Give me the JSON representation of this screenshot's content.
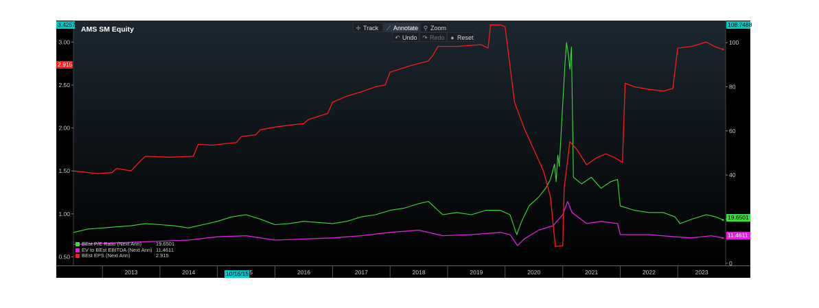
{
  "chart_title": "AMS SM Equity",
  "toolbar": {
    "track": "Track",
    "annotate": "Annotate",
    "zoom": "Zoom",
    "undo": "Undo",
    "redo": "Redo",
    "reset": "Reset"
  },
  "left_top_value": "3.4257",
  "right_top_value": "108.7488",
  "x_date_label": "10/16/15",
  "colors": {
    "background": "#000000",
    "eps": "#ff1a1a",
    "pe": "#3ddc3d",
    "ev": "#e020e0",
    "axis_text": "#cccccc",
    "top_left_badge": "#00c8c8",
    "top_right_badge": "#00c8c8"
  },
  "chart_data": {
    "type": "line",
    "title": "AMS SM Equity",
    "x_range": [
      "2012-07-01",
      "2023-11-01"
    ],
    "x_tick_labels": [
      "2013",
      "2014",
      "2015",
      "2016",
      "2017",
      "2018",
      "2019",
      "2020",
      "2021",
      "2022",
      "2023"
    ],
    "y_left": {
      "range": [
        0.4,
        3.25
      ],
      "ticks": [
        "0.50",
        "1.00",
        "1.50",
        "2.00",
        "2.50",
        "3.00"
      ]
    },
    "y_right": {
      "range": [
        -1,
        110
      ],
      "ticks": [
        "0",
        "20",
        "40",
        "60",
        "80",
        "100"
      ]
    },
    "legend_position": "bottom-left",
    "grid": false,
    "series": [
      {
        "name": "BEst P/E Ratio (Next Ann)",
        "axis": "right",
        "last_value": "19.6501",
        "color": "#3ddc3d",
        "points": [
          [
            "2012-07-01",
            14
          ],
          [
            "2012-10-01",
            15.5
          ],
          [
            "2013-01-01",
            16
          ],
          [
            "2013-04-01",
            16.5
          ],
          [
            "2013-07-01",
            17
          ],
          [
            "2013-10-01",
            18
          ],
          [
            "2014-01-01",
            17.5
          ],
          [
            "2014-04-01",
            17
          ],
          [
            "2014-07-01",
            16
          ],
          [
            "2014-10-01",
            17.5
          ],
          [
            "2015-01-01",
            19
          ],
          [
            "2015-04-01",
            21
          ],
          [
            "2015-07-01",
            22
          ],
          [
            "2015-10-01",
            20
          ],
          [
            "2016-01-01",
            17.5
          ],
          [
            "2016-04-01",
            18
          ],
          [
            "2016-07-01",
            19
          ],
          [
            "2016-10-01",
            18.5
          ],
          [
            "2017-01-01",
            18
          ],
          [
            "2017-04-01",
            19
          ],
          [
            "2017-07-01",
            21
          ],
          [
            "2017-10-01",
            22
          ],
          [
            "2018-01-01",
            24
          ],
          [
            "2018-04-01",
            25
          ],
          [
            "2018-07-01",
            27
          ],
          [
            "2018-09-01",
            28
          ],
          [
            "2018-12-01",
            22
          ],
          [
            "2019-03-01",
            23
          ],
          [
            "2019-06-01",
            22
          ],
          [
            "2019-09-01",
            24
          ],
          [
            "2019-12-01",
            24
          ],
          [
            "2020-02-01",
            22
          ],
          [
            "2020-03-15",
            13
          ],
          [
            "2020-04-15",
            19
          ],
          [
            "2020-06-01",
            26
          ],
          [
            "2020-08-01",
            30
          ],
          [
            "2020-09-15",
            34
          ],
          [
            "2020-10-15",
            38
          ],
          [
            "2020-11-10",
            45
          ],
          [
            "2020-11-20",
            37
          ],
          [
            "2020-12-01",
            49
          ],
          [
            "2020-12-10",
            44
          ],
          [
            "2021-01-01",
            72
          ],
          [
            "2021-01-15",
            90
          ],
          [
            "2021-01-25",
            100
          ],
          [
            "2021-02-05",
            95
          ],
          [
            "2021-02-15",
            88
          ],
          [
            "2021-02-25",
            98
          ],
          [
            "2021-03-10",
            39
          ],
          [
            "2021-05-01",
            36
          ],
          [
            "2021-07-01",
            39
          ],
          [
            "2021-09-01",
            34
          ],
          [
            "2021-11-01",
            37
          ],
          [
            "2021-12-15",
            38
          ],
          [
            "2022-01-01",
            26
          ],
          [
            "2022-04-01",
            24
          ],
          [
            "2022-07-01",
            23
          ],
          [
            "2022-10-01",
            23
          ],
          [
            "2022-12-15",
            21
          ],
          [
            "2023-01-15",
            18
          ],
          [
            "2023-04-01",
            20
          ],
          [
            "2023-07-01",
            22
          ],
          [
            "2023-09-01",
            21
          ],
          [
            "2023-10-15",
            19.6501
          ]
        ]
      },
      {
        "name": "EV to BEst EBITDA (Next Ann)",
        "axis": "right",
        "last_value": "11.4611",
        "color": "#e020e0",
        "points": [
          [
            "2012-07-01",
            8.5
          ],
          [
            "2013-01-01",
            9
          ],
          [
            "2013-07-01",
            9.5
          ],
          [
            "2014-01-01",
            10
          ],
          [
            "2014-07-01",
            10.5
          ],
          [
            "2015-01-01",
            12
          ],
          [
            "2015-07-01",
            12.5
          ],
          [
            "2015-10-01",
            11.5
          ],
          [
            "2016-01-01",
            10.5
          ],
          [
            "2016-07-01",
            11
          ],
          [
            "2017-01-01",
            11.5
          ],
          [
            "2017-07-01",
            12.5
          ],
          [
            "2018-01-01",
            14
          ],
          [
            "2018-07-01",
            15
          ],
          [
            "2018-12-01",
            12.5
          ],
          [
            "2019-06-01",
            13
          ],
          [
            "2019-12-01",
            14
          ],
          [
            "2020-02-01",
            13
          ],
          [
            "2020-03-20",
            8
          ],
          [
            "2020-05-01",
            11
          ],
          [
            "2020-08-01",
            15
          ],
          [
            "2020-11-01",
            17
          ],
          [
            "2021-01-01",
            22
          ],
          [
            "2021-02-01",
            28
          ],
          [
            "2021-03-01",
            23
          ],
          [
            "2021-06-01",
            18
          ],
          [
            "2021-09-01",
            19
          ],
          [
            "2021-12-15",
            18
          ],
          [
            "2022-01-01",
            13
          ],
          [
            "2022-07-01",
            13
          ],
          [
            "2022-12-15",
            12
          ],
          [
            "2023-04-01",
            11.5
          ],
          [
            "2023-08-01",
            12.5
          ],
          [
            "2023-10-15",
            11.4611
          ]
        ]
      },
      {
        "name": "BEst EPS (Next Ann)",
        "axis": "left",
        "last_value": "2.915",
        "color": "#ff1a1a",
        "points": [
          [
            "2012-07-01",
            1.5
          ],
          [
            "2012-12-01",
            1.47
          ],
          [
            "2013-03-01",
            1.48
          ],
          [
            "2013-04-01",
            1.53
          ],
          [
            "2013-07-01",
            1.5
          ],
          [
            "2013-09-01",
            1.62
          ],
          [
            "2013-10-01",
            1.67
          ],
          [
            "2014-03-01",
            1.66
          ],
          [
            "2014-08-01",
            1.67
          ],
          [
            "2014-09-01",
            1.81
          ],
          [
            "2014-12-01",
            1.8
          ],
          [
            "2015-03-01",
            1.82
          ],
          [
            "2015-05-01",
            1.83
          ],
          [
            "2015-06-01",
            1.9
          ],
          [
            "2015-09-01",
            1.92
          ],
          [
            "2015-10-01",
            1.98
          ],
          [
            "2016-01-01",
            2.01
          ],
          [
            "2016-05-01",
            2.04
          ],
          [
            "2016-07-01",
            2.05
          ],
          [
            "2016-08-01",
            2.1
          ],
          [
            "2016-12-01",
            2.17
          ],
          [
            "2017-01-01",
            2.3
          ],
          [
            "2017-04-01",
            2.37
          ],
          [
            "2017-07-01",
            2.42
          ],
          [
            "2017-10-01",
            2.48
          ],
          [
            "2017-12-01",
            2.5
          ],
          [
            "2018-01-01",
            2.65
          ],
          [
            "2018-05-01",
            2.72
          ],
          [
            "2018-09-01",
            2.78
          ],
          [
            "2018-10-01",
            2.85
          ],
          [
            "2018-11-01",
            2.95
          ],
          [
            "2019-03-01",
            2.95
          ],
          [
            "2019-08-01",
            2.97
          ],
          [
            "2019-09-15",
            2.93
          ],
          [
            "2019-10-01",
            3.2
          ],
          [
            "2019-12-01",
            3.2
          ],
          [
            "2020-01-01",
            3.18
          ],
          [
            "2020-03-01",
            2.3
          ],
          [
            "2020-05-01",
            2.0
          ],
          [
            "2020-07-01",
            1.75
          ],
          [
            "2020-09-01",
            1.5
          ],
          [
            "2020-10-15",
            1.2
          ],
          [
            "2020-11-15",
            0.62
          ],
          [
            "2021-01-01",
            0.63
          ],
          [
            "2021-01-10",
            1.3
          ],
          [
            "2021-02-15",
            1.84
          ],
          [
            "2021-04-01",
            1.75
          ],
          [
            "2021-06-01",
            1.57
          ],
          [
            "2021-08-01",
            1.65
          ],
          [
            "2021-10-01",
            1.7
          ],
          [
            "2021-12-01",
            1.65
          ],
          [
            "2022-01-15",
            1.6
          ],
          [
            "2022-02-01",
            2.52
          ],
          [
            "2022-04-01",
            2.48
          ],
          [
            "2022-07-01",
            2.45
          ],
          [
            "2022-10-01",
            2.43
          ],
          [
            "2022-12-01",
            2.46
          ],
          [
            "2023-01-01",
            2.93
          ],
          [
            "2023-04-01",
            2.95
          ],
          [
            "2023-07-01",
            3.0
          ],
          [
            "2023-09-01",
            2.94
          ],
          [
            "2023-10-15",
            2.915
          ]
        ]
      }
    ]
  }
}
